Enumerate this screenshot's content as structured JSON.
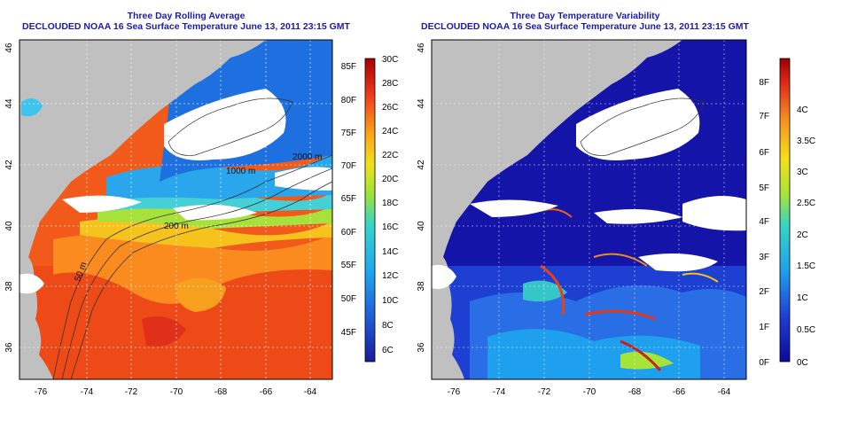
{
  "left_panel": {
    "title": "Three Day Rolling Average",
    "subtitle": "DECLOUDED NOAA 16 Sea Surface Temperature June 13, 2011 23:15 GMT",
    "lat_ticks": [
      "46",
      "44",
      "42",
      "40",
      "38",
      "36"
    ],
    "lon_ticks": [
      "-76",
      "-74",
      "-72",
      "-70",
      "-68",
      "-66",
      "-64"
    ],
    "contour_labels": [
      "2000 m",
      "1000 m",
      "200 m",
      "50 m"
    ],
    "colorbar_f": [
      "85F",
      "80F",
      "75F",
      "70F",
      "65F",
      "60F",
      "55F",
      "50F",
      "45F"
    ],
    "colorbar_c": [
      "30C",
      "28C",
      "26C",
      "24C",
      "22C",
      "20C",
      "18C",
      "16C",
      "14C",
      "12C",
      "10C",
      "8C",
      "6C"
    ]
  },
  "right_panel": {
    "title": "Three Day Temperature Variability",
    "subtitle": "DECLOUDED NOAA 16 Sea Surface Temperature June 13, 2011 23:15 GMT",
    "lat_ticks": [
      "46",
      "44",
      "42",
      "40",
      "38",
      "36"
    ],
    "lon_ticks": [
      "-76",
      "-74",
      "-72",
      "-70",
      "-68",
      "-66",
      "-64"
    ],
    "colorbar_f": [
      "8F",
      "7F",
      "6F",
      "5F",
      "4F",
      "3F",
      "2F",
      "1F",
      "0F"
    ],
    "colorbar_c": [
      "4C",
      "3.5C",
      "3C",
      "2.5C",
      "2C",
      "1.5C",
      "1C",
      "0.5C",
      "0C"
    ]
  },
  "colors": {
    "title": "#1c1ca8",
    "land": "#c0c0c0",
    "cloud": "#ffffff"
  }
}
